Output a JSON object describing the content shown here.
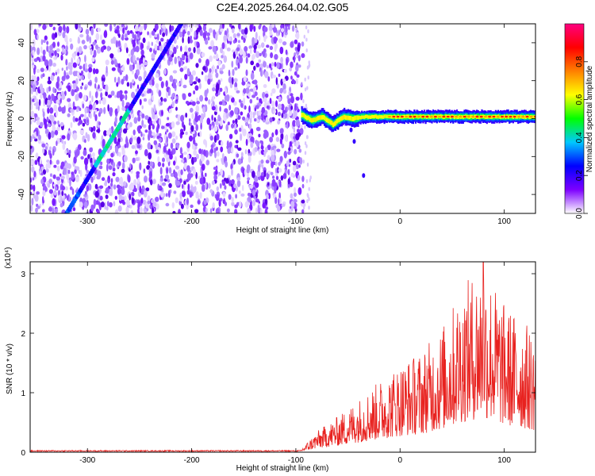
{
  "title": "C2E4.2025.264.04.02.G05",
  "chart_data": [
    {
      "type": "heatmap",
      "name": "spectrogram",
      "xlabel": "Height of straight line (km)",
      "ylabel": "Frequency (Hz)",
      "xlim": [
        -355,
        130
      ],
      "ylim": [
        -50,
        50
      ],
      "xticks": [
        -300,
        -200,
        -100,
        0,
        100
      ],
      "yticks": [
        -40,
        -20,
        0,
        20,
        40
      ],
      "noise_region_x": [
        -355,
        -93
      ],
      "diagonal_trace": {
        "x": [
          -320,
          -210
        ],
        "y": [
          -50,
          50
        ]
      },
      "carrier_trace": {
        "x": [
          -95,
          -85,
          -75,
          -65,
          -55,
          -45,
          -35,
          -20,
          0,
          50,
          130
        ],
        "y": [
          2,
          -1,
          1,
          -3,
          1,
          0,
          1,
          1,
          1,
          1,
          1
        ]
      },
      "colorbar": {
        "label": "Normalized spectral amplitude",
        "range": [
          0,
          1
        ],
        "ticks": [
          "0.0",
          "0.2",
          "0.4",
          "0.6",
          "0.8"
        ],
        "colors": [
          "#ffffff",
          "#7d00ff",
          "#0000ff",
          "#00c8ff",
          "#00ff00",
          "#ffff00",
          "#ff8000",
          "#ff0000",
          "#ff0080"
        ]
      }
    },
    {
      "type": "line",
      "name": "snr",
      "xlabel": "Height of straight line (km)",
      "ylabel": "SNR (10 * v/v)",
      "multiplier_label": "(x10⁴)",
      "xlim": [
        -355,
        130
      ],
      "ylim": [
        0,
        3.2
      ],
      "xticks": [
        -300,
        -200,
        -100,
        0,
        100
      ],
      "yticks": [
        0,
        1,
        2,
        3
      ],
      "color": "#e8221f",
      "envelope": {
        "x": [
          -355,
          -100,
          -95,
          -80,
          -60,
          -40,
          -20,
          0,
          20,
          40,
          60,
          80,
          100,
          120,
          130
        ],
        "y": [
          0.02,
          0.03,
          0.05,
          0.35,
          0.6,
          0.9,
          1.2,
          1.5,
          1.7,
          2.1,
          2.8,
          3.2,
          2.5,
          2.2,
          2.0
        ]
      }
    }
  ]
}
